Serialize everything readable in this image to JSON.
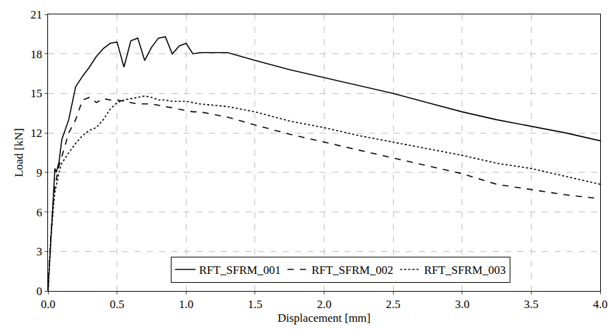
{
  "chart_data": {
    "type": "line",
    "x_label": "Displacement [mm]",
    "y_label": "Load [kN]",
    "x": [
      0,
      0.02,
      0.04,
      0.05,
      0.06,
      0.08,
      0.1,
      0.15,
      0.2,
      0.25,
      0.3,
      0.35,
      0.4,
      0.45,
      0.5,
      0.55,
      0.6,
      0.65,
      0.7,
      0.75,
      0.8,
      0.85,
      0.9,
      0.95,
      1.0,
      1.05,
      1.1,
      1.2,
      1.3,
      1.4,
      1.5,
      1.75,
      2.0,
      2.25,
      2.5,
      2.75,
      3.0,
      3.25,
      3.5,
      3.75,
      4.0
    ],
    "series": [
      {
        "name": "RFT_SFRM_001",
        "color": "#000000",
        "line_style": "solid",
        "values": [
          0,
          4,
          8,
          9.3,
          9,
          9.8,
          11.5,
          13,
          15.5,
          16.3,
          17,
          17.8,
          18.4,
          18.8,
          18.9,
          17,
          19.0,
          19.2,
          17.5,
          18.5,
          19.2,
          19.3,
          18,
          18.6,
          18.8,
          18,
          18.1,
          18.1,
          18.1,
          17.8,
          17.5,
          16.8,
          16.2,
          15.6,
          15.0,
          14.3,
          13.6,
          13.0,
          12.5,
          12.0,
          11.4
        ]
      },
      {
        "name": "RFT_SFRM_002",
        "color": "#000000",
        "line_style": "dash",
        "values": [
          0,
          4,
          7,
          8,
          8.5,
          9.5,
          10.2,
          12,
          13,
          14.5,
          14.7,
          14.3,
          14.6,
          14.5,
          14.5,
          14.4,
          14.3,
          14.2,
          14.2,
          14.2,
          14.1,
          14.0,
          13.9,
          13.8,
          13.7,
          13.6,
          13.6,
          13.4,
          13.2,
          12.9,
          12.6,
          11.9,
          11.3,
          10.7,
          10.1,
          9.5,
          8.9,
          8.1,
          7.7,
          7.3,
          7.0
        ]
      },
      {
        "name": "RFT_SFRM_003",
        "color": "#000000",
        "line_style": "dot",
        "values": [
          0,
          4,
          6.5,
          7.5,
          8,
          9,
          9.7,
          10.5,
          11.2,
          11.8,
          12.2,
          12.4,
          13,
          13.8,
          14.3,
          14.5,
          14.6,
          14.7,
          14.8,
          14.7,
          14.5,
          14.5,
          14.4,
          14.4,
          14.4,
          14.3,
          14.2,
          14.1,
          14.0,
          13.8,
          13.6,
          12.9,
          12.4,
          11.8,
          11.3,
          10.8,
          10.3,
          9.7,
          9.3,
          8.7,
          8.1
        ]
      }
    ],
    "xlim": [
      0,
      4
    ],
    "xticks": [
      {
        "value": 0,
        "label": "0.0"
      },
      0.5,
      {
        "value": 1,
        "label": "1.0"
      },
      1.5,
      {
        "value": 2,
        "label": "2.0"
      },
      2.5,
      {
        "value": 3,
        "label": "3.0"
      },
      3.5,
      {
        "value": 4,
        "label": "4.0"
      }
    ],
    "ylim": [
      0,
      21
    ],
    "yticks": [
      0,
      3,
      6,
      9,
      12,
      15,
      18,
      21
    ],
    "grid": true,
    "legend": "bottom"
  }
}
